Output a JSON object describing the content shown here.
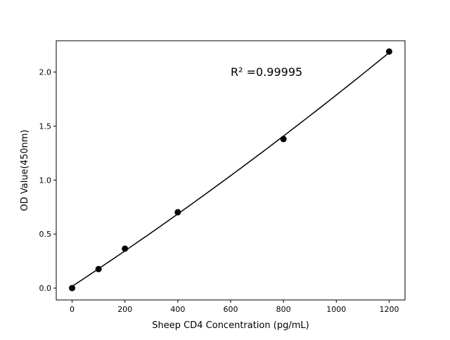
{
  "chart_data": {
    "type": "scatter",
    "title": "",
    "xlabel": "Sheep CD4 Concentration (pg/mL)",
    "ylabel": "OD Value(450nm)",
    "annotation": "R² =0.99995",
    "xlim": [
      -60,
      1260
    ],
    "ylim": [
      -0.11,
      2.29
    ],
    "xticks": [
      0,
      200,
      400,
      600,
      800,
      1000,
      1200
    ],
    "xtick_labels": [
      "0",
      "200",
      "400",
      "600",
      "800",
      "1000",
      "1200"
    ],
    "yticks": [
      0.0,
      0.5,
      1.0,
      1.5,
      2.0
    ],
    "ytick_labels": [
      "0.0",
      "0.5",
      "1.0",
      "1.5",
      "2.0"
    ],
    "grid": false,
    "series": [
      {
        "x": [
          0,
          100,
          200,
          400,
          800,
          1200
        ],
        "y": [
          0.0,
          0.176,
          0.365,
          0.702,
          1.38,
          2.19
        ],
        "marker": "circle",
        "fit": "polynomial curve",
        "color": "#000000"
      }
    ]
  }
}
